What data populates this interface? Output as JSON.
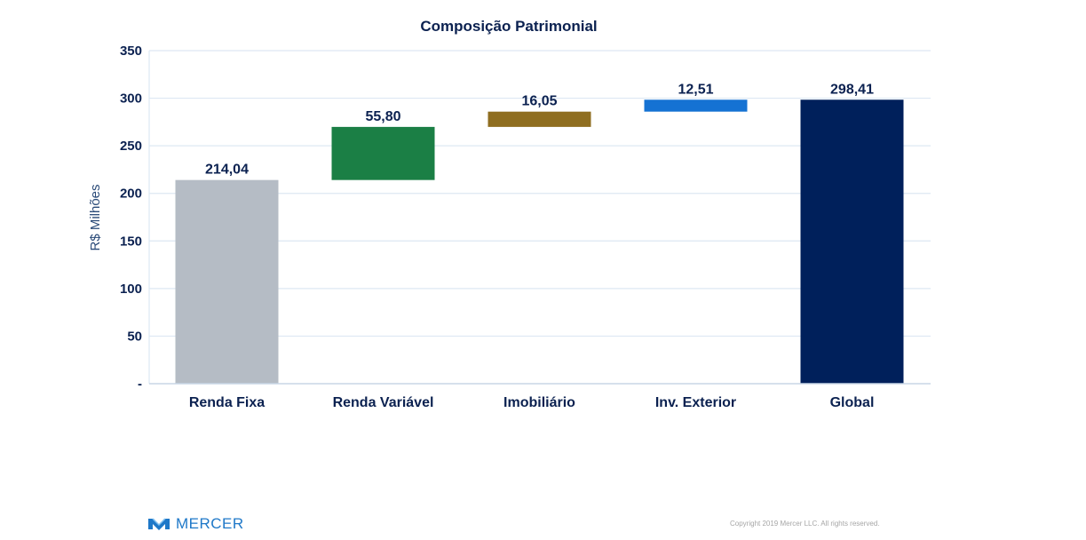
{
  "chart_data": {
    "type": "bar",
    "subtype": "waterfall",
    "title": "Composição Patrimonial",
    "ylabel": "R$ Milhões",
    "xlabel": "",
    "ylim": [
      0,
      350
    ],
    "yticks": [
      "-",
      "50",
      "100",
      "150",
      "200",
      "250",
      "300",
      "350"
    ],
    "ytick_values": [
      0,
      50,
      100,
      150,
      200,
      250,
      300,
      350
    ],
    "grid": true,
    "categories": [
      "Renda Fixa",
      "Renda Variável",
      "Imobiliário",
      "Inv. Exterior",
      "Global"
    ],
    "bars": [
      {
        "category": "Renda Fixa",
        "start": 0,
        "end": 214.04,
        "label": "214,04",
        "color": "#b5bcc5"
      },
      {
        "category": "Renda Variável",
        "start": 214.04,
        "end": 269.84,
        "label": "55,80",
        "color": "#1b7f45"
      },
      {
        "category": "Imobiliário",
        "start": 269.84,
        "end": 285.89,
        "label": "16,05",
        "color": "#8f6e20"
      },
      {
        "category": "Inv. Exterior",
        "start": 285.89,
        "end": 298.41,
        "label": "12,51",
        "color": "#1572d3"
      },
      {
        "category": "Global",
        "start": 0,
        "end": 298.41,
        "label": "298,41",
        "color": "#00205b"
      }
    ]
  },
  "footer": {
    "brand": "MERCER",
    "copyright": "Copyright 2019 Mercer LLC. All rights reserved."
  }
}
